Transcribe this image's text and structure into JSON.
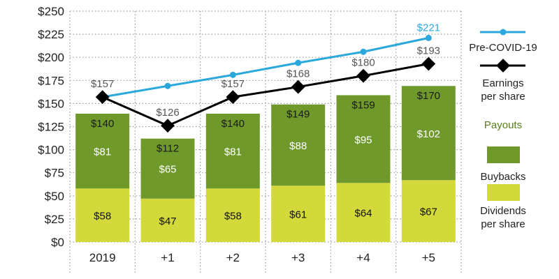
{
  "chart_data": {
    "type": "bar",
    "categories": [
      "2019",
      "+1",
      "+2",
      "+3",
      "+4",
      "+5"
    ],
    "ylim": [
      0,
      250
    ],
    "yticks": [
      "$0",
      "$25",
      "$50",
      "$75",
      "$100",
      "$125",
      "$150",
      "$175",
      "$200",
      "$225",
      "$250"
    ],
    "grid": true,
    "legend_position": "right",
    "bar_series": [
      {
        "name": "Dividends per share",
        "values": [
          58,
          47,
          58,
          61,
          64,
          67
        ],
        "labels": [
          "$58",
          "$47",
          "$58",
          "$61",
          "$64",
          "$67"
        ],
        "color": "#d3d93a"
      },
      {
        "name": "Buybacks",
        "values": [
          81,
          65,
          81,
          88,
          95,
          102
        ],
        "labels": [
          "$81",
          "$65",
          "$81",
          "$88",
          "$95",
          "$102"
        ],
        "color": "#6f9a2b"
      }
    ],
    "bar_totals": {
      "values": [
        140,
        112,
        140,
        149,
        159,
        170
      ],
      "labels": [
        "$140",
        "$112",
        "$140",
        "$149",
        "$159",
        "$170"
      ]
    },
    "line_series": [
      {
        "name": "Pre-COVID-19",
        "x": [
          "2019",
          "+1",
          "+2",
          "+3",
          "+4",
          "+5"
        ],
        "values": [
          157,
          169,
          181,
          194,
          206,
          221
        ],
        "labels": [
          "",
          "",
          "",
          "",
          "",
          "$221"
        ],
        "color": "#2aa8dc"
      },
      {
        "name": "Earnings per share",
        "x": [
          "2019",
          "+1",
          "+2",
          "+3",
          "+4",
          "+5"
        ],
        "values": [
          157,
          126,
          157,
          168,
          180,
          193
        ],
        "labels": [
          "$157",
          "$126",
          "$157",
          "$168",
          "$180",
          "$193"
        ],
        "color": "#000000"
      }
    ]
  },
  "legend": {
    "pre_covid": "Pre-COVID-19",
    "eps_line1": "Earnings",
    "eps_line2": "per share",
    "payouts": "Payouts",
    "buybacks": "Buybacks",
    "dividends_line1": "Dividends",
    "dividends_line2": "per share"
  },
  "colors": {
    "buybacks": "#6f9a2b",
    "dividends": "#d3d93a",
    "pre_covid": "#2aa8dc",
    "eps": "#000000",
    "payouts_title": "#5a7d1f",
    "label_gray": "#555555",
    "grid": "#9a9a9a"
  }
}
